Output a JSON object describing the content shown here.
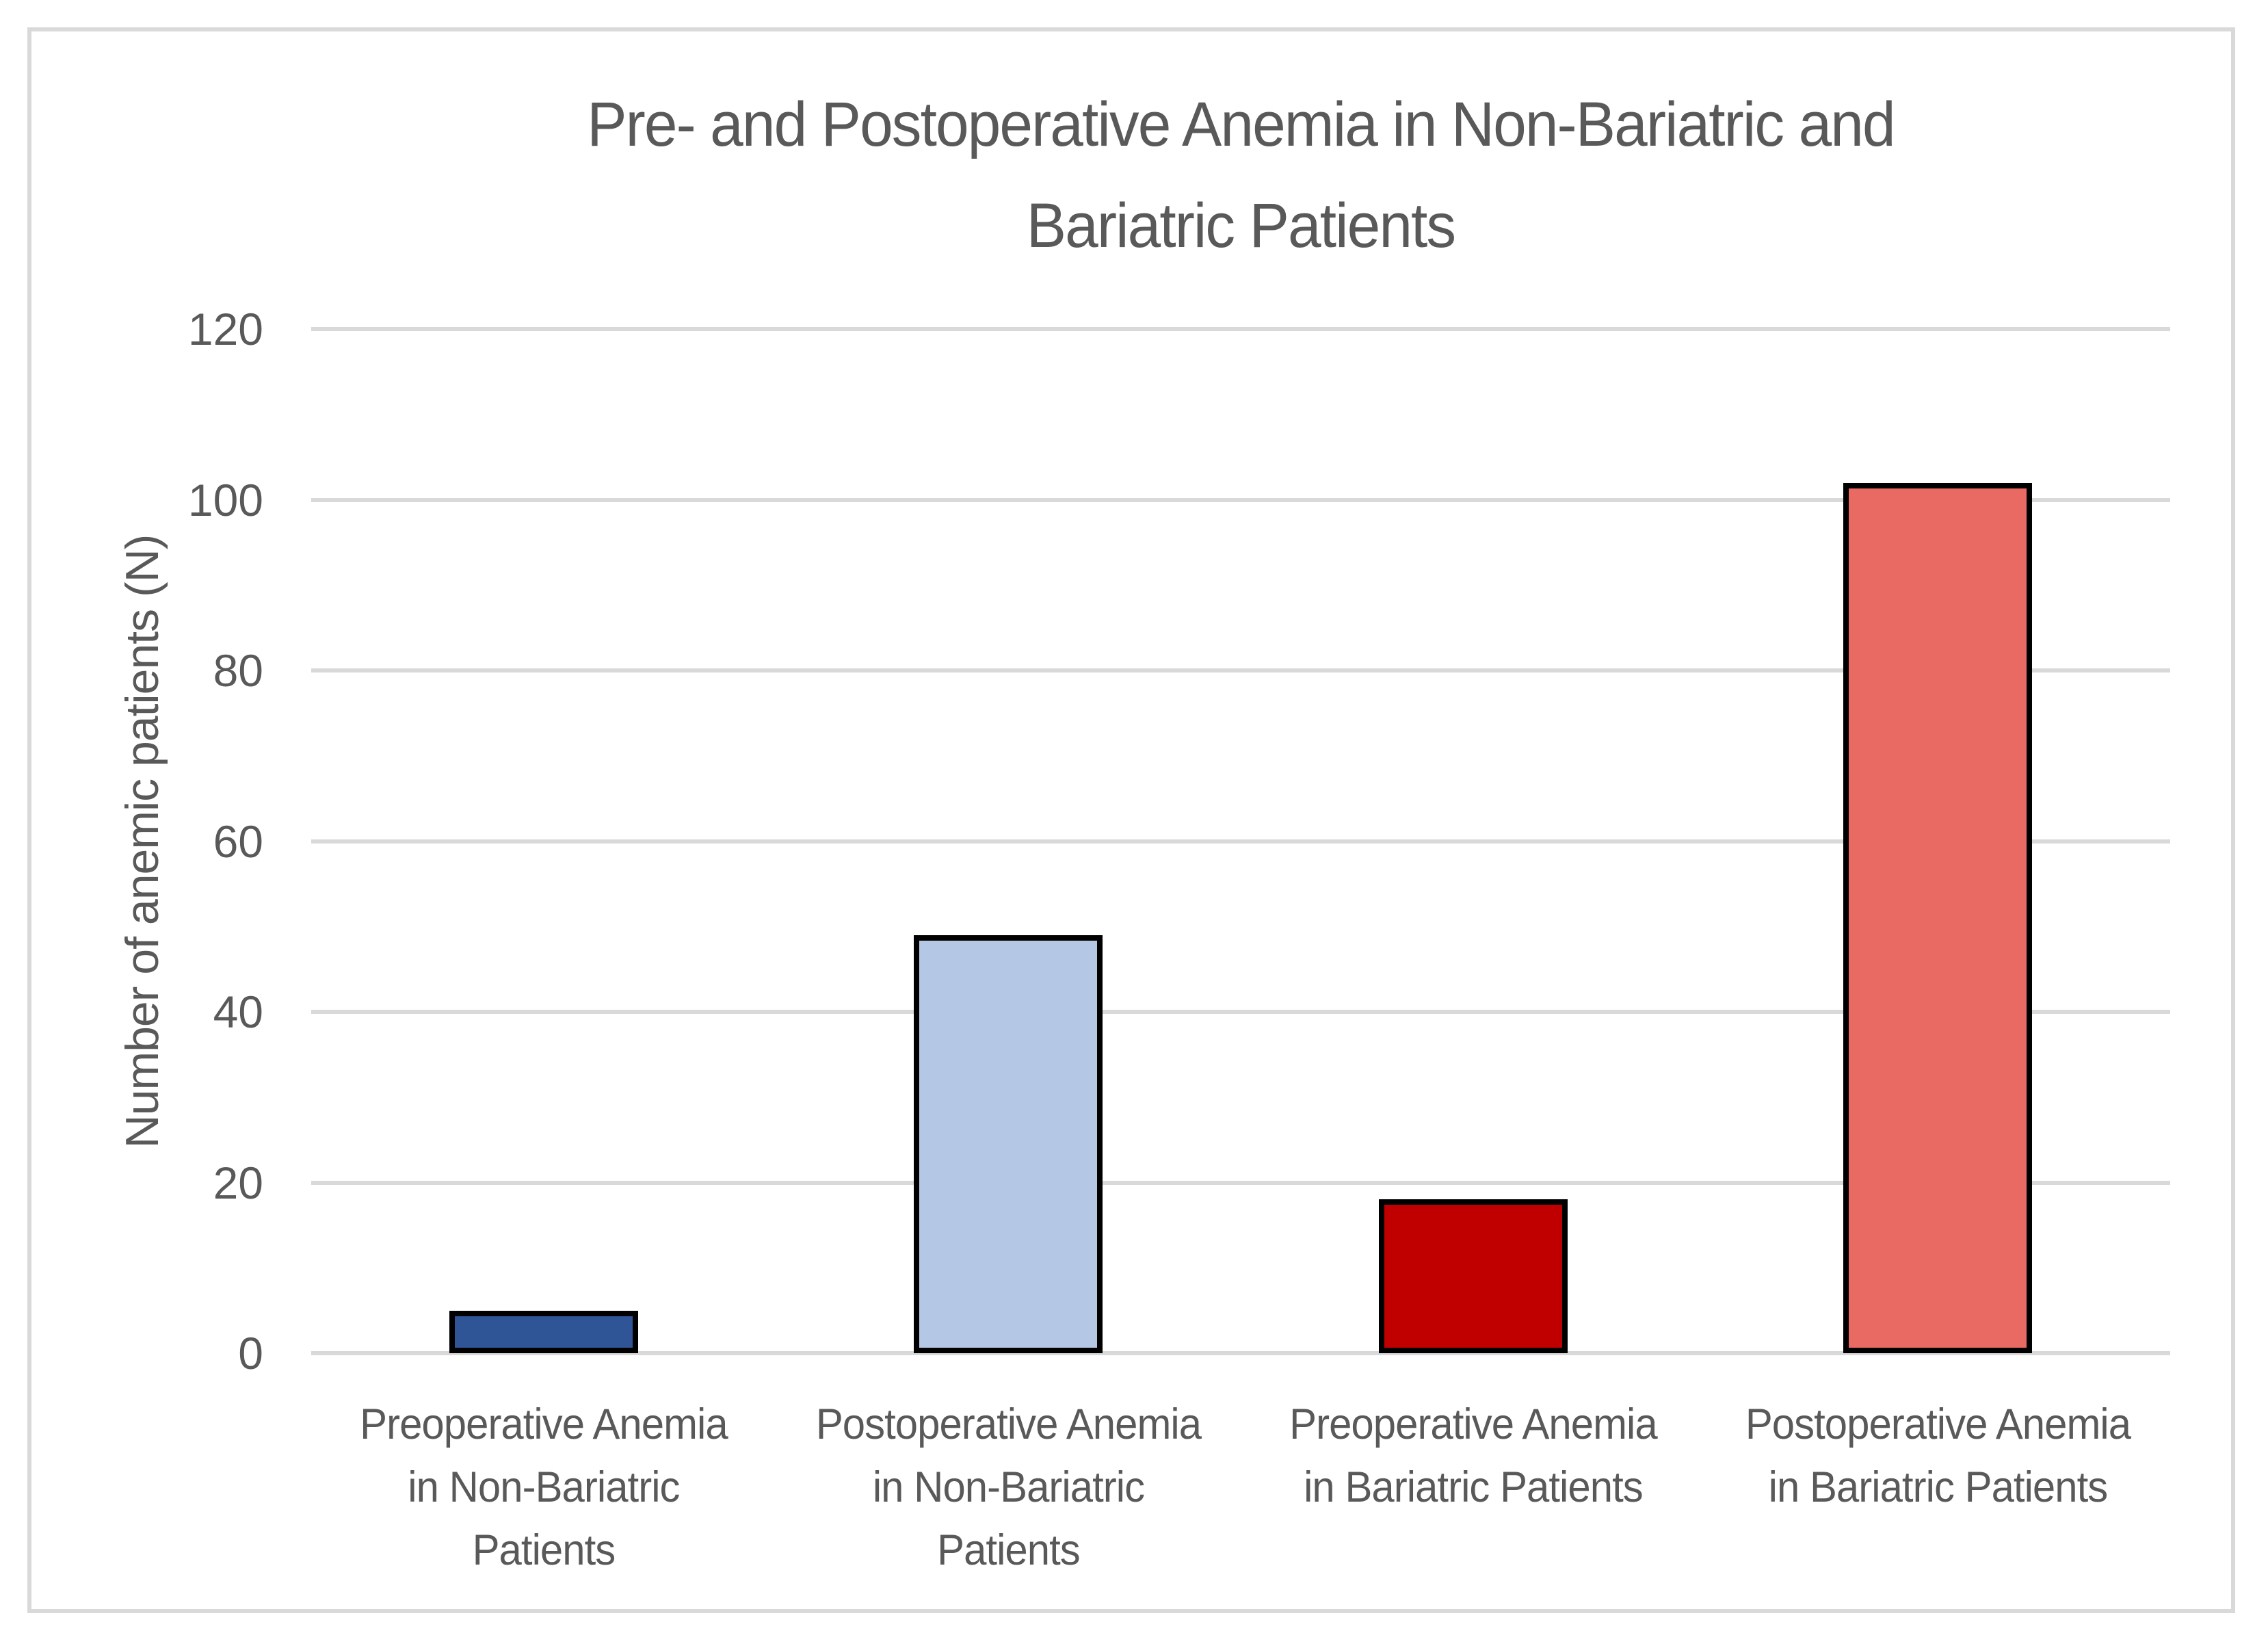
{
  "chart_data": {
    "type": "bar",
    "title": "Pre- and Postoperative Anemia in Non-Bariatric and Bariatric Patients",
    "title_lines": [
      "Pre- and Postoperative Anemia in Non-Bariatric and",
      "Bariatric Patients"
    ],
    "categories": [
      "Preoperative Anemia in Non-Bariatric Patients",
      "Postoperative Anemia in Non-Bariatric Patients",
      "Preoperative Anemia in Bariatric Patients",
      "Postoperative Anemia in Bariatric Patients"
    ],
    "category_lines": [
      [
        "Preoperative Anemia",
        "in Non-Bariatric",
        "Patients"
      ],
      [
        "Postoperative Anemia",
        "in Non-Bariatric",
        "Patients"
      ],
      [
        "Preoperative Anemia",
        "in Bariatric Patients"
      ],
      [
        "Postoperative Anemia",
        "in Bariatric Patients"
      ]
    ],
    "values": [
      5,
      49,
      18,
      102
    ],
    "bar_colors": [
      "#2F5597",
      "#B4C7E5",
      "#C00000",
      "#E96A62"
    ],
    "bar_border_color": "#000000",
    "xlabel": "",
    "ylabel": "Number of anemic patients (N)",
    "yticks": [
      0,
      20,
      40,
      60,
      80,
      100,
      120
    ],
    "ylim": [
      0,
      120
    ],
    "grid": true,
    "gridline_color": "#D9D9D9",
    "text_color": "#595959",
    "frame_border_color": "#D9D9D9",
    "legend_position": "none"
  }
}
